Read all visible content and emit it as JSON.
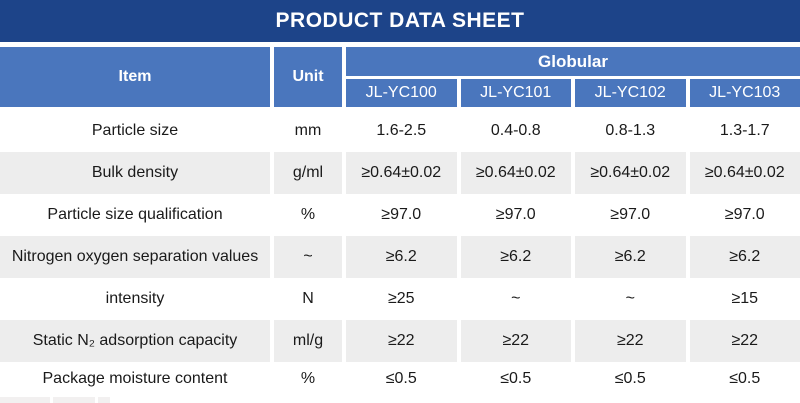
{
  "banner": {
    "title": "PRODUCT DATA SHEET"
  },
  "table": {
    "header": {
      "item": "Item",
      "unit": "Unit",
      "group": "Globular",
      "models": [
        "JL-YC100",
        "JL-YC101",
        "JL-YC102",
        "JL-YC103"
      ]
    },
    "rows": [
      {
        "item": "Particle size",
        "unit": "mm",
        "values": [
          "1.6-2.5",
          "0.4-0.8",
          "0.8-1.3",
          "1.3-1.7"
        ]
      },
      {
        "item": "Bulk density",
        "unit": "g/ml",
        "values": [
          "≥0.64±0.02",
          "≥0.64±0.02",
          "≥0.64±0.02",
          "≥0.64±0.02"
        ]
      },
      {
        "item": "Particle size qualification",
        "unit": "%",
        "values": [
          "≥97.0",
          "≥97.0",
          "≥97.0",
          "≥97.0"
        ]
      },
      {
        "item": "Nitrogen oxygen separation values",
        "unit": "~",
        "values": [
          "≥6.2",
          "≥6.2",
          "≥6.2",
          "≥6.2"
        ]
      },
      {
        "item": "intensity",
        "unit": "N",
        "values": [
          "≥25",
          "~",
          "~",
          "≥15"
        ]
      },
      {
        "item": "Static N₂ adsorption capacity",
        "unit": "ml/g",
        "values": [
          "≥22",
          "≥22",
          "≥22",
          "≥22"
        ]
      },
      {
        "item": "Package moisture content",
        "unit": "%",
        "values": [
          "≤0.5",
          "≤0.5",
          "≤0.5",
          "≤0.5"
        ]
      }
    ]
  },
  "colors": {
    "banner_bg": "#1D4489",
    "header_bg": "#4A76BD",
    "row_alt_bg": "#EDEDED",
    "text": "#1A1A1A",
    "header_text": "#FFFFFF"
  }
}
